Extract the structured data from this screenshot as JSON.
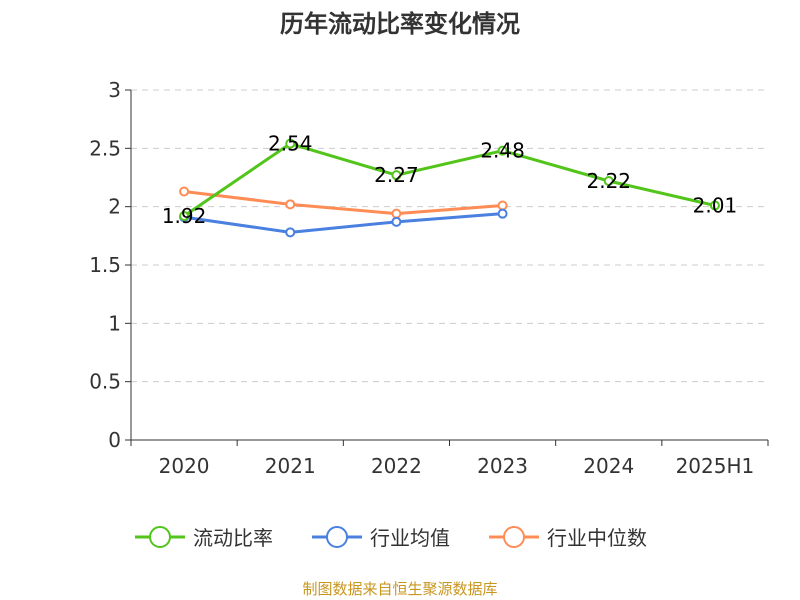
{
  "chart_data": {
    "type": "line",
    "title": "历年流动比率变化情况",
    "categories": [
      "2020",
      "2021",
      "2022",
      "2023",
      "2024",
      "2025H1"
    ],
    "ylim": [
      0,
      3
    ],
    "yticks": [
      "0",
      "0.5",
      "1",
      "1.5",
      "2",
      "2.5",
      "3"
    ],
    "grid": true,
    "legend_position": "bottom",
    "series": [
      {
        "name": "流动比率",
        "color": "#52c41a",
        "values": [
          1.92,
          2.54,
          2.27,
          2.48,
          2.22,
          2.01
        ],
        "labels": [
          "1.92",
          "2.54",
          "2.27",
          "2.48",
          "2.22",
          "2.01"
        ]
      },
      {
        "name": "行业均值",
        "color": "#4a80e0",
        "values": [
          1.91,
          1.78,
          1.87,
          1.94,
          null,
          null
        ]
      },
      {
        "name": "行业中位数",
        "color": "#ff8c55",
        "values": [
          2.13,
          2.02,
          1.94,
          2.01,
          null,
          null
        ]
      }
    ]
  },
  "source": "制图数据来自恒生聚源数据库"
}
